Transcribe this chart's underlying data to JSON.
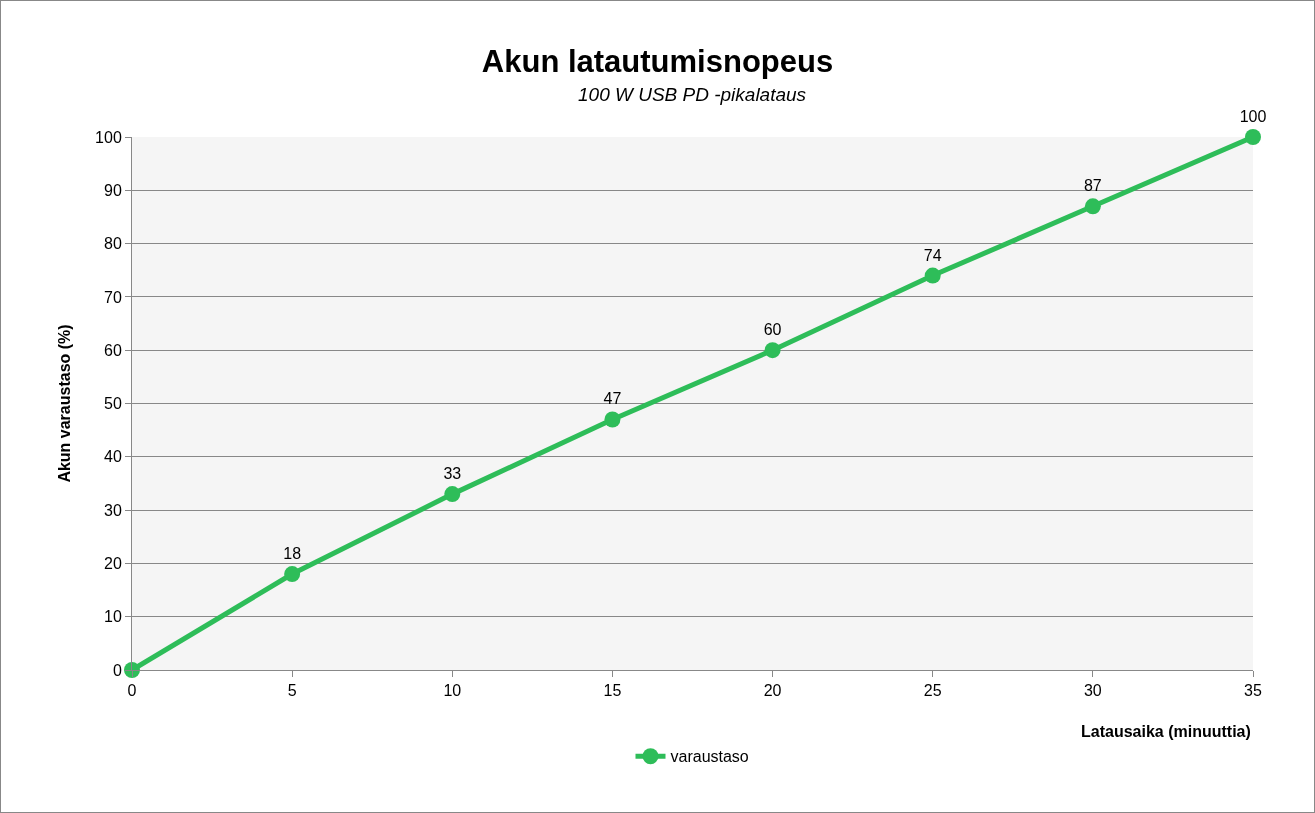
{
  "chart_data": {
    "type": "line",
    "title": "Akun latautumisnopeus",
    "subtitle": "100 W USB PD -pikalataus",
    "xlabel": "Latausaika (minuuttia)",
    "ylabel": "Akun varaustaso (%)",
    "x": [
      0,
      5,
      10,
      15,
      20,
      25,
      30,
      35
    ],
    "series": [
      {
        "name": "varaustaso",
        "color": "#2ebd59",
        "values": [
          0,
          18,
          33,
          47,
          60,
          74,
          87,
          100
        ],
        "value_labels": [
          null,
          "18",
          "33",
          "47",
          "60",
          "74",
          "87",
          "100"
        ]
      }
    ],
    "xlim": [
      0,
      35
    ],
    "xticks": [
      0,
      5,
      10,
      15,
      20,
      25,
      30,
      35
    ],
    "ylim": [
      0,
      100
    ],
    "yticks": [
      0,
      10,
      20,
      30,
      40,
      50,
      60,
      70,
      80,
      90,
      100
    ],
    "grid": "y",
    "legend": "bottom",
    "marker": "circle",
    "line_style": "solid"
  }
}
